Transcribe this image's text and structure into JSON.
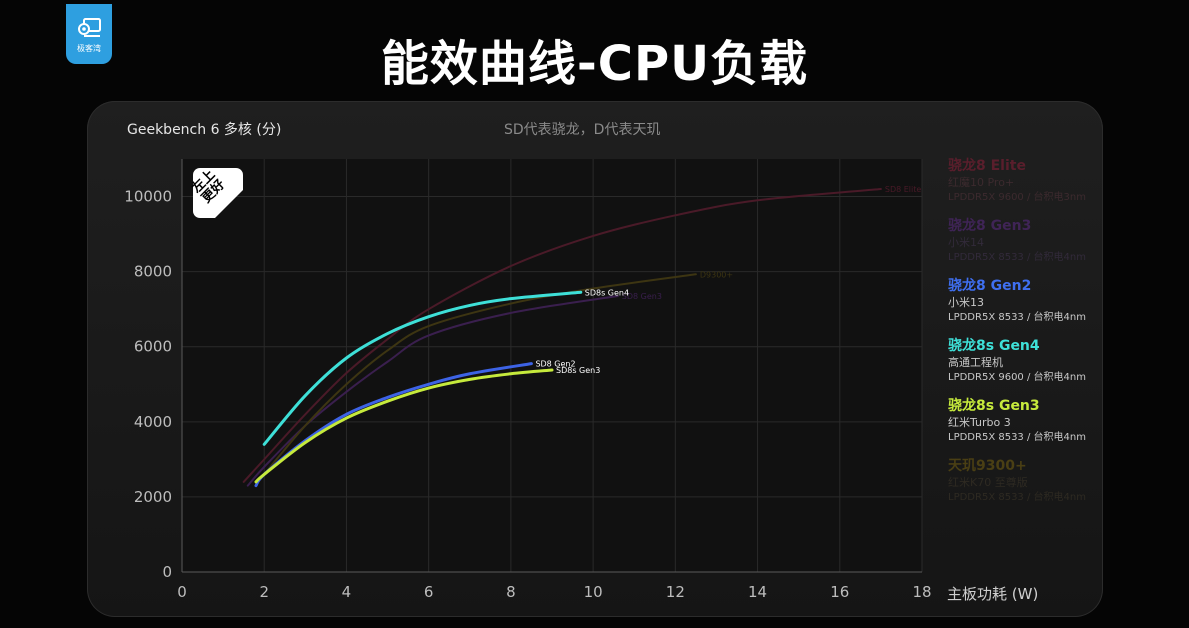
{
  "logo": {
    "text": "极客湾"
  },
  "title": "能效曲线-CPU负载",
  "chart_label": "Geekbench 6  多核 (分)",
  "note": "SD代表骁龙，D代表天玑",
  "badge": {
    "line1": "左上",
    "line2": "更好"
  },
  "chart_data": {
    "type": "line",
    "xlabel": "主板功耗 (W)",
    "ylabel": "Geekbench 6  多核 (分)",
    "xlim": [
      0,
      18
    ],
    "ylim": [
      0,
      11000
    ],
    "x_ticks": [
      "0",
      "2",
      "4",
      "6",
      "8",
      "10",
      "12",
      "14",
      "16",
      "18"
    ],
    "y_ticks": [
      "0",
      "2000",
      "4000",
      "6000",
      "8000",
      "10000"
    ],
    "grid": true,
    "legend_position": "right",
    "series": [
      {
        "name": "骁龙8 Elite",
        "device": "红魔10 Pro+",
        "memory": "LPDDR5X 9600 / 台积电3nm",
        "end_label": "SD8 Elite",
        "color": "#4a1a28",
        "legend_color": "#5a1e2c",
        "desc_color": "#3c2a2e",
        "width": 2,
        "points": [
          [
            1.5,
            2400
          ],
          [
            2,
            3000
          ],
          [
            3,
            4200
          ],
          [
            4,
            5300
          ],
          [
            5,
            6200
          ],
          [
            6,
            7000
          ],
          [
            8,
            8150
          ],
          [
            10,
            8950
          ],
          [
            12,
            9500
          ],
          [
            14,
            9900
          ],
          [
            17,
            10200
          ]
        ]
      },
      {
        "name": "骁龙8 Gen3",
        "device": "小米14",
        "memory": "LPDDR5X 8533 / 台积电4nm",
        "end_label": "SD8 Gen3",
        "color": "#3a1f4e",
        "legend_color": "#3f2456",
        "desc_color": "#322a3a",
        "width": 2,
        "points": [
          [
            1.6,
            2300
          ],
          [
            2,
            2800
          ],
          [
            3,
            3900
          ],
          [
            4,
            4800
          ],
          [
            5,
            5600
          ],
          [
            6,
            6300
          ],
          [
            8,
            6900
          ],
          [
            10.6,
            7350
          ]
        ]
      },
      {
        "name": "骁龙8 Gen2",
        "device": "小米13",
        "memory": "LPDDR5X 8533 / 台积电4nm",
        "end_label": "SD8 Gen2",
        "color": "#3d63e6",
        "legend_color": "#3f6ff0",
        "desc_color": "#c8c8c8",
        "width": 3,
        "points": [
          [
            1.8,
            2300
          ],
          [
            2,
            2600
          ],
          [
            3,
            3500
          ],
          [
            4,
            4200
          ],
          [
            5,
            4650
          ],
          [
            6,
            5000
          ],
          [
            7,
            5280
          ],
          [
            8.5,
            5550
          ]
        ]
      },
      {
        "name": "骁龙8s Gen4",
        "device": "高通工程机",
        "memory": "LPDDR5X 9600 / 台积电4nm",
        "end_label": "SD8s Gen4",
        "color": "#3ee0d8",
        "legend_color": "#3ee0d8",
        "desc_color": "#c8c8c8",
        "width": 3,
        "points": [
          [
            2,
            3400
          ],
          [
            3,
            4700
          ],
          [
            4,
            5700
          ],
          [
            5,
            6350
          ],
          [
            6,
            6800
          ],
          [
            7,
            7100
          ],
          [
            8,
            7280
          ],
          [
            9.7,
            7450
          ]
        ]
      },
      {
        "name": "骁龙8s Gen3",
        "device": "红米Turbo 3",
        "memory": "LPDDR5X 8533 / 台积电4nm",
        "end_label": "SD8s Gen3",
        "color": "#c6ea3c",
        "legend_color": "#c6ea3c",
        "desc_color": "#c8c8c8",
        "width": 3,
        "points": [
          [
            1.8,
            2400
          ],
          [
            2,
            2600
          ],
          [
            3,
            3450
          ],
          [
            4,
            4100
          ],
          [
            5,
            4550
          ],
          [
            6,
            4900
          ],
          [
            7,
            5130
          ],
          [
            8,
            5280
          ],
          [
            9,
            5380
          ]
        ]
      },
      {
        "name": "天玑9300+",
        "device": "红米K70 至尊版",
        "memory": "LPDDR5X 8533 / 台积电4nm",
        "end_label": "D9300+",
        "color": "#3d3512",
        "legend_color": "#4a3f14",
        "desc_color": "#2e2a22",
        "width": 2,
        "points": [
          [
            1.8,
            2300
          ],
          [
            2,
            2600
          ],
          [
            3,
            3900
          ],
          [
            4,
            5000
          ],
          [
            5,
            5900
          ],
          [
            6,
            6550
          ],
          [
            8,
            7150
          ],
          [
            10,
            7550
          ],
          [
            12.5,
            7930
          ]
        ]
      }
    ]
  }
}
